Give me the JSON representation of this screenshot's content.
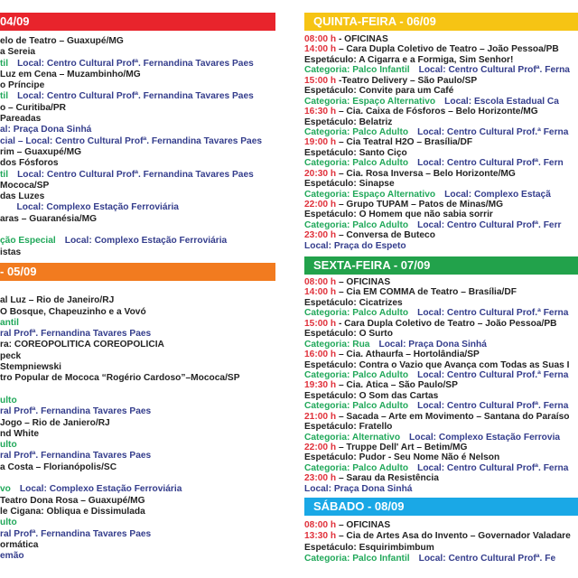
{
  "colors": {
    "k": "#232323",
    "r": "#e0313b",
    "g": "#21a85a",
    "b": "#343d8c"
  },
  "left": {
    "sections": [
      {
        "header": "04/09",
        "color": "#e8242c",
        "lines": [
          [
            {
              "c": "k",
              "t": "elo de Teatro – Guaxupé/MG"
            }
          ],
          [
            {
              "c": "k",
              "t": "a Sereia"
            }
          ],
          [
            {
              "c": "g",
              "t": "til"
            },
            {
              "c": "b",
              "t": "Local: Centro Cultural Profª. Fernandina Tavares Paes",
              "gap": true
            }
          ],
          [
            {
              "c": "k",
              "t": "Luz em Cena – Muzambinho/MG"
            }
          ],
          [
            {
              "c": "k",
              "t": "o Príncipe"
            }
          ],
          [
            {
              "c": "g",
              "t": "til"
            },
            {
              "c": "b",
              "t": "Local: Centro Cultural Profª. Fernandina Tavares Paes",
              "gap": true
            }
          ],
          [
            {
              "c": "k",
              "t": "o – Curitiba/PR"
            }
          ],
          [
            {
              "c": "k",
              "t": "Pareadas"
            }
          ],
          [
            {
              "c": "b",
              "t": "al: Praça Dona Sinhá"
            }
          ],
          [
            {
              "c": "b",
              "t": "cial – Local: Centro Cultural Profª. Fernandina Tavares Paes"
            }
          ],
          [
            {
              "c": "k",
              "t": "rim – Guaxupé/MG"
            }
          ],
          [
            {
              "c": "k",
              "t": "dos Fósforos"
            }
          ],
          [
            {
              "c": "g",
              "t": "til"
            },
            {
              "c": "b",
              "t": "Local: Centro Cultural Profª. Fernandina Tavares Paes",
              "gap": true
            }
          ],
          [
            {
              "c": "k",
              "t": "Mococa/SP"
            }
          ],
          [
            {
              "c": "k",
              "t": "das Luzes"
            }
          ],
          [
            {
              "c": "g",
              "t": "   "
            },
            {
              "c": "b",
              "t": "Local: Complexo Estação Ferroviária",
              "gap": true
            }
          ],
          [
            {
              "c": "k",
              "t": "aras – Guaranésia/MG"
            }
          ],
          [],
          [
            {
              "c": "g",
              "t": "ção Especial"
            },
            {
              "c": "b",
              "t": "Local: Complexo Estação Ferroviária",
              "gap": true
            }
          ],
          [
            {
              "c": "k",
              "t": "istas"
            }
          ]
        ]
      },
      {
        "header": "- 05/09",
        "color": "#f27b1f",
        "lines": [
          [],
          [
            {
              "c": "k",
              "t": "al Luz – Rio de Janeiro/RJ"
            }
          ],
          [
            {
              "c": "k",
              "t": "O Bosque, Chapeuzinho e a Vovó"
            }
          ],
          [
            {
              "c": "g",
              "t": "antil"
            }
          ],
          [
            {
              "c": "b",
              "t": "ral Profª. Fernandina Tavares Paes"
            }
          ],
          [
            {
              "c": "k",
              "t": "ra: COREOPOLÍTICA COREOPOLÍCIA"
            }
          ],
          [
            {
              "c": "k",
              "t": "peck"
            }
          ],
          [
            {
              "c": "k",
              "t": "Stempniewski"
            }
          ],
          [
            {
              "c": "k",
              "t": "tro Popular de Mococa “Rogério Cardoso”–Mococa/SP"
            }
          ],
          [],
          [
            {
              "c": "g",
              "t": "ulto"
            }
          ],
          [
            {
              "c": "b",
              "t": "ral Profª. Fernandina Tavares Paes"
            }
          ],
          [
            {
              "c": "k",
              "t": "Jogo – Rio de Janiero/RJ"
            }
          ],
          [
            {
              "c": "k",
              "t": "nd White"
            }
          ],
          [
            {
              "c": "g",
              "t": "ulto"
            }
          ],
          [
            {
              "c": "b",
              "t": "ral Profª. Fernandina Tavares Paes"
            }
          ],
          [
            {
              "c": "k",
              "t": "a Costa – Florianópolis/SC"
            }
          ],
          [],
          [
            {
              "c": "g",
              "t": "vo"
            },
            {
              "c": "b",
              "t": "Local: Complexo Estação Ferroviária",
              "gap": true
            }
          ],
          [
            {
              "c": "k",
              "t": "Teatro Dona Rosa – Guaxupé/MG"
            }
          ],
          [
            {
              "c": "k",
              "t": "le Cigana: Obliqua e Dissimulada"
            }
          ],
          [
            {
              "c": "g",
              "t": "ulto"
            }
          ],
          [
            {
              "c": "b",
              "t": "ral Profª. Fernandina Tavares Paes"
            }
          ],
          [
            {
              "c": "k",
              "t": "ormática"
            }
          ],
          [
            {
              "c": "b",
              "t": "emão"
            }
          ]
        ]
      }
    ]
  },
  "right": {
    "sections": [
      {
        "header": "QUINTA-FEIRA - 06/09",
        "color": "#f6c414",
        "lines": [
          [
            {
              "c": "r",
              "t": "08:00 h"
            },
            {
              "c": "k",
              "t": " - OFICINAS"
            }
          ],
          [
            {
              "c": "r",
              "t": "14:00 h"
            },
            {
              "c": "k",
              "t": " – Cara Dupla Coletivo de Teatro – João Pessoa/PB"
            }
          ],
          [
            {
              "c": "k",
              "t": "Espetáculo: A Cigarra e a Formiga, Sim Senhor!"
            }
          ],
          [
            {
              "c": "g",
              "t": "Categoria: Palco Infantil"
            },
            {
              "c": "b",
              "t": "Local: Centro Cultural Profª. Ferna",
              "gap": true
            }
          ],
          [
            {
              "c": "r",
              "t": "15:00 h"
            },
            {
              "c": "k",
              "t": " -Teatro Delivery – São Paulo/SP"
            }
          ],
          [
            {
              "c": "k",
              "t": "Espetáculo: Convite para um Café"
            }
          ],
          [
            {
              "c": "g",
              "t": "Categoria: Espaço Alternativo"
            },
            {
              "c": "b",
              "t": "Local: Escola Estadual Ca",
              "gap": true
            }
          ],
          [
            {
              "c": "r",
              "t": "16:30 h"
            },
            {
              "c": "k",
              "t": " – Cia. Caixa de Fósforos – Belo Horizonte/MG"
            }
          ],
          [
            {
              "c": "k",
              "t": "Espetáculo: Belatriz"
            }
          ],
          [
            {
              "c": "g",
              "t": "Categoria: Palco Adulto"
            },
            {
              "c": "b",
              "t": "Local: Centro Cultural Prof.ª Ferna",
              "gap": true
            }
          ],
          [
            {
              "c": "r",
              "t": "19:00 h"
            },
            {
              "c": "k",
              "t": " – Cia Teatral H2O – Brasília/DF"
            }
          ],
          [
            {
              "c": "k",
              "t": "Espetáculo: Santo Ciço"
            }
          ],
          [
            {
              "c": "g",
              "t": "Categoria: Palco Adulto"
            },
            {
              "c": "b",
              "t": "Local: Centro Cultural Profª. Fern",
              "gap": true
            }
          ],
          [
            {
              "c": "r",
              "t": "20:30 h"
            },
            {
              "c": "k",
              "t": " – Cia. Rosa Inversa – Belo Horizonte/MG"
            }
          ],
          [
            {
              "c": "k",
              "t": "Espetáculo: Sinapse"
            }
          ],
          [
            {
              "c": "g",
              "t": "Categoria: Espaço Alternativo"
            },
            {
              "c": "b",
              "t": "Local: Complexo Estaçã",
              "gap": true
            }
          ],
          [
            {
              "c": "r",
              "t": "22:00 h"
            },
            {
              "c": "k",
              "t": " – Grupo TUPAM – Patos de Minas/MG"
            }
          ],
          [
            {
              "c": "k",
              "t": "Espetáculo: O Homem que não sabia sorrir"
            }
          ],
          [
            {
              "c": "g",
              "t": "Categoria: Palco Adulto"
            },
            {
              "c": "b",
              "t": "Local: Centro Cultural Profª. Ferr",
              "gap": true
            }
          ],
          [
            {
              "c": "r",
              "t": "23:00 h"
            },
            {
              "c": "k",
              "t": " – Conversa de Buteco"
            }
          ],
          [
            {
              "c": "b",
              "t": "Local: Praça do Espeto"
            }
          ]
        ]
      },
      {
        "header": "SEXTA-FEIRA - 07/09",
        "color": "#22a24b",
        "lines": [
          [
            {
              "c": "r",
              "t": "08:00 h"
            },
            {
              "c": "k",
              "t": " – OFICINAS"
            }
          ],
          [
            {
              "c": "r",
              "t": "14:00 h"
            },
            {
              "c": "k",
              "t": " – Cia EM COMMA de Teatro – Brasília/DF"
            }
          ],
          [
            {
              "c": "k",
              "t": "Espetáculo: Cicatrizes"
            }
          ],
          [
            {
              "c": "g",
              "t": "Categoria: Palco Adulto"
            },
            {
              "c": "b",
              "t": "Local: Centro Cultural Prof.ª Ferna",
              "gap": true
            }
          ],
          [
            {
              "c": "r",
              "t": "15:00 h"
            },
            {
              "c": "k",
              "t": " - Cara Dupla Coletivo de Teatro – João Pessoa/PB"
            }
          ],
          [
            {
              "c": "k",
              "t": "Espetáculo: O Surto"
            }
          ],
          [
            {
              "c": "g",
              "t": "Categoria: Rua"
            },
            {
              "c": "b",
              "t": "Local: Praça Dona Sinhá",
              "gap": true
            }
          ],
          [
            {
              "c": "r",
              "t": "16:00 h"
            },
            {
              "c": "k",
              "t": " – Cia. Athaurfa – Hortolândia/SP"
            }
          ],
          [
            {
              "c": "k",
              "t": "Espetáculo: Contra o Vazio que Avança com Todas as Suas I"
            }
          ],
          [
            {
              "c": "g",
              "t": "Categoria: Palco Adulto"
            },
            {
              "c": "b",
              "t": "Local: Centro Cultural Prof.ª Ferna",
              "gap": true
            }
          ],
          [
            {
              "c": "r",
              "t": "19:30 h"
            },
            {
              "c": "k",
              "t": " – Cia. Ática – São Paulo/SP"
            }
          ],
          [
            {
              "c": "k",
              "t": "Espetáculo: O Som das Cartas"
            }
          ],
          [
            {
              "c": "g",
              "t": "Categoria: Palco Adulto"
            },
            {
              "c": "b",
              "t": "Local: Centro Cultural Profª. Ferna",
              "gap": true
            }
          ],
          [
            {
              "c": "r",
              "t": "21:00 h"
            },
            {
              "c": "k",
              "t": " – Sacada – Arte em Movimento – Santana do Paraíso"
            }
          ],
          [
            {
              "c": "k",
              "t": "Espetáculo: Fratello"
            }
          ],
          [
            {
              "c": "g",
              "t": "Categoria: Alternativo"
            },
            {
              "c": "b",
              "t": "Local: Complexo Estação Ferrovia",
              "gap": true
            }
          ],
          [
            {
              "c": "r",
              "t": "22:00 h"
            },
            {
              "c": "k",
              "t": " – Truppe Dell' Art – Betim/MG"
            }
          ],
          [
            {
              "c": "k",
              "t": "Espetáculo: Pudor - Seu Nome Não é Nelson"
            }
          ],
          [
            {
              "c": "g",
              "t": "Categoria: Palco Adulto"
            },
            {
              "c": "b",
              "t": "Local: Centro Cultural Profª. Ferna",
              "gap": true
            }
          ],
          [
            {
              "c": "r",
              "t": "23:00 h"
            },
            {
              "c": "k",
              "t": " – Sarau da Resistência"
            }
          ],
          [
            {
              "c": "b",
              "t": "Local: Praça Dona Sinhá"
            }
          ]
        ]
      },
      {
        "header": "SÁBADO - 08/09",
        "color": "#1aa8e6",
        "lines": [
          [
            {
              "c": "r",
              "t": "08:00 h"
            },
            {
              "c": "k",
              "t": " – OFICINAS"
            }
          ],
          [
            {
              "c": "r",
              "t": "13:30 h"
            },
            {
              "c": "k",
              "t": " – Cia de Artes Asa do Invento – Governador Valadare"
            }
          ],
          [
            {
              "c": "k",
              "t": "Espetáculo: Esquirimbimbum"
            }
          ],
          [
            {
              "c": "g",
              "t": "Categoria: Palco Infantil"
            },
            {
              "c": "b",
              "t": "Local: Centro Cultural Profª. Fe",
              "gap": true
            }
          ]
        ]
      }
    ]
  }
}
